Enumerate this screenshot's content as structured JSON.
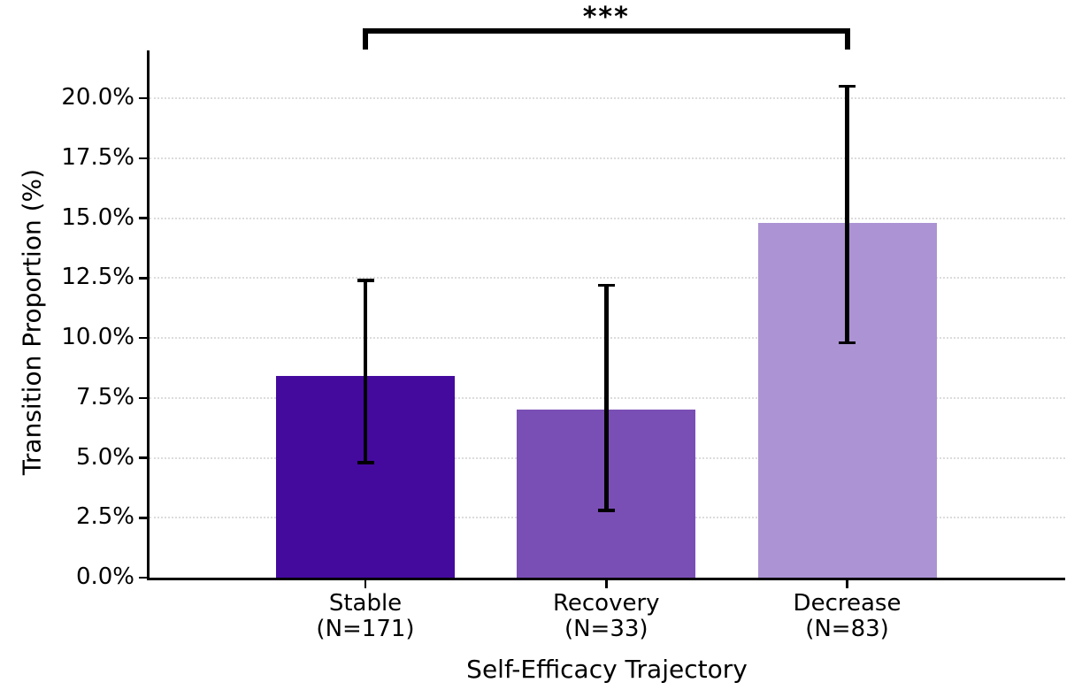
{
  "chart_data": {
    "type": "bar",
    "title": "",
    "xlabel": "Self-Efficacy Trajectory",
    "ylabel": "Transition Proportion (%)",
    "categories": [
      {
        "label": "Stable",
        "sublabel": "(N=171)"
      },
      {
        "label": "Recovery",
        "sublabel": "(N=33)"
      },
      {
        "label": "Decrease",
        "sublabel": "(N=83)"
      }
    ],
    "values": [
      8.4,
      7.0,
      14.8
    ],
    "error_bars": [
      {
        "low": 4.8,
        "high": 12.4
      },
      {
        "low": 2.8,
        "high": 12.2
      },
      {
        "low": 9.8,
        "high": 20.5
      }
    ],
    "bar_colors": [
      "#440A9E",
      "#7A4FB5",
      "#AC93D4"
    ],
    "yticks": [
      {
        "value": 0,
        "label": "0.0%"
      },
      {
        "value": 2.5,
        "label": "2.5%"
      },
      {
        "value": 5,
        "label": "5.0%"
      },
      {
        "value": 7.5,
        "label": "7.5%"
      },
      {
        "value": 10,
        "label": "10.0%"
      },
      {
        "value": 12.5,
        "label": "12.5%"
      },
      {
        "value": 15,
        "label": "15.0%"
      },
      {
        "value": 17.5,
        "label": "17.5%"
      },
      {
        "value": 20,
        "label": "20.0%"
      }
    ],
    "ylim": [
      0,
      22
    ],
    "grid": "horizontal-dotted",
    "legend": null,
    "significance_bracket": {
      "label": "***",
      "from_category": "Stable",
      "to_category": "Decrease"
    },
    "colors": {
      "error_bar": "#000000",
      "grid": "#dcdcdc",
      "axis": "#000000",
      "text": "#000000",
      "background": "#ffffff"
    }
  }
}
